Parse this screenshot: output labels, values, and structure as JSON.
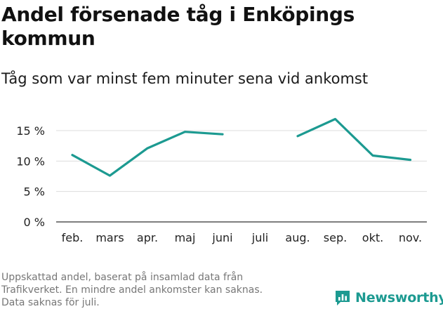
{
  "chart_data": {
    "type": "line",
    "title": "Andel försenade tåg i Enköpings kommun",
    "subtitle": "Tåg som var minst fem minuter sena vid ankomst",
    "categories": [
      "feb.",
      "mars",
      "apr.",
      "maj",
      "juni",
      "juli",
      "aug.",
      "sep.",
      "okt.",
      "nov."
    ],
    "series": [
      {
        "values": [
          11.0,
          7.6,
          12.1,
          14.8,
          14.4,
          null,
          14.1,
          16.9,
          10.9,
          10.2
        ]
      }
    ],
    "y_ticks": [
      0,
      5,
      10,
      15
    ],
    "y_tick_labels": [
      "0 %",
      "5 %",
      "10 %",
      "15 %"
    ],
    "ylim": [
      0,
      18
    ],
    "grid": true,
    "line_color": "#1c9a91"
  },
  "footer": {
    "note_lines": [
      "Uppskattad andel, baserat på insamlad data från",
      "Trafikverket. En mindre andel ankomster kan saknas.",
      "Data saknas för juli."
    ],
    "brand": "Newsworthy",
    "brand_icon": "newsworthy-logo-icon"
  },
  "colors": {
    "accent": "#1c9a91",
    "grid": "#dddddd",
    "text": "#111111",
    "muted": "#777777"
  }
}
